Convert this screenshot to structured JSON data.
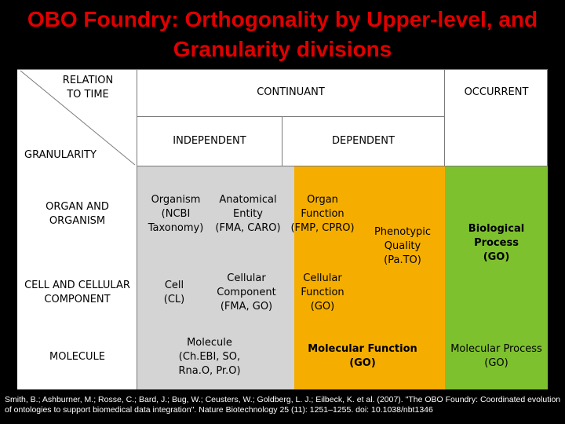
{
  "title": {
    "line1": "OBO Foundry: Orthogonality by Upper-level, and",
    "line2": "Granularity divisions"
  },
  "header": {
    "relation_to_time": "RELATION\nTO TIME",
    "granularity": "GRANULARITY",
    "continuant": "CONTINUANT",
    "occurrent": "OCCURRENT",
    "independent": "INDEPENDENT",
    "dependent": "DEPENDENT"
  },
  "rows": {
    "organ": "ORGAN AND\nORGANISM",
    "cell": "CELL AND CELLULAR\nCOMPONENT",
    "molecule": "MOLECULE"
  },
  "cells": {
    "organism": "Organism\n(NCBI\nTaxonomy)",
    "anatomical": "Anatomical\nEntity\n(FMA, CARO)",
    "organ_function": "Organ\nFunction\n(FMP, CPRO)",
    "phenotypic": "Phenotypic\nQuality\n(Pa.TO)",
    "biological_process": "Biological Process\n(GO)",
    "cell_cl": "Cell\n(CL)",
    "cellular_component": "Cellular\nComponent\n(FMA, GO)",
    "cellular_function": "Cellular\nFunction\n(GO)",
    "molecule": "Molecule\n(Ch.EBI, SO,\nRna.O, Pr.O)",
    "molecular_function": "Molecular Function\n(GO)",
    "molecular_process": "Molecular Process\n(GO)"
  },
  "citation": "Smith, B.; Ashburner, M.; Rosse, C.; Bard, J.; Bug, W.; Ceusters, W.; Goldberg, L. J.; Eilbeck, K. et al. (2007). \"The OBO Foundry: Coordinated evolution of ontologies to support biomedical data integration\". Nature Biotechnology 25 (11): 1251–1255. doi: 10.1038/nbt1346",
  "colors": {
    "title": "#e00000",
    "independent_bg": "#d4d4d4",
    "dependent_bg": "#f5ae00",
    "occurrent_bg": "#7ec12e"
  }
}
